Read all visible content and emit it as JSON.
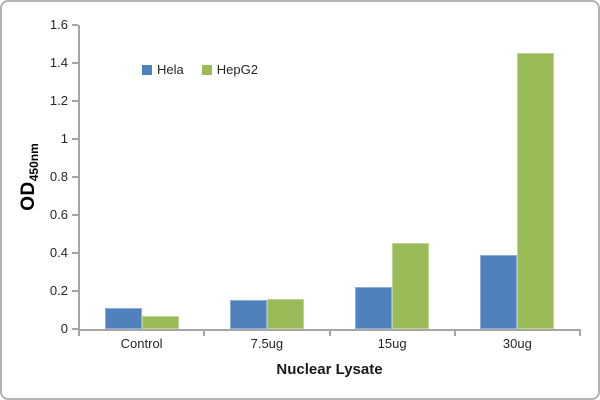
{
  "chart_data": {
    "type": "bar",
    "title": "",
    "xlabel": "Nuclear Lysate",
    "ylabel_main": "OD",
    "ylabel_sub": "450nm",
    "ylim": [
      0,
      1.6
    ],
    "grid": false,
    "legend_position": "top-left-inside",
    "categories": [
      "Control",
      "7.5ug",
      "15ug",
      "30ug"
    ],
    "series": [
      {
        "name": "Hela",
        "color": "#4F81BD",
        "values": [
          0.11,
          0.15,
          0.22,
          0.39
        ]
      },
      {
        "name": "HepG2",
        "color": "#9BBB59",
        "values": [
          0.07,
          0.16,
          0.45,
          1.45
        ]
      }
    ],
    "yticks": [
      {
        "v": 0,
        "label": "0"
      },
      {
        "v": 0.2,
        "label": "0.2"
      },
      {
        "v": 0.4,
        "label": "0.4"
      },
      {
        "v": 0.6,
        "label": "0.6"
      },
      {
        "v": 0.8,
        "label": "0.8"
      },
      {
        "v": 1,
        "label": "1"
      },
      {
        "v": 1.2,
        "label": "1.2"
      },
      {
        "v": 1.4,
        "label": "1.4"
      },
      {
        "v": 1.6,
        "label": "1.6"
      }
    ],
    "axis_color": "#a6a6a6",
    "text_color": "#262626",
    "border_color": "#b3b3b3",
    "background": "#ffffff"
  }
}
